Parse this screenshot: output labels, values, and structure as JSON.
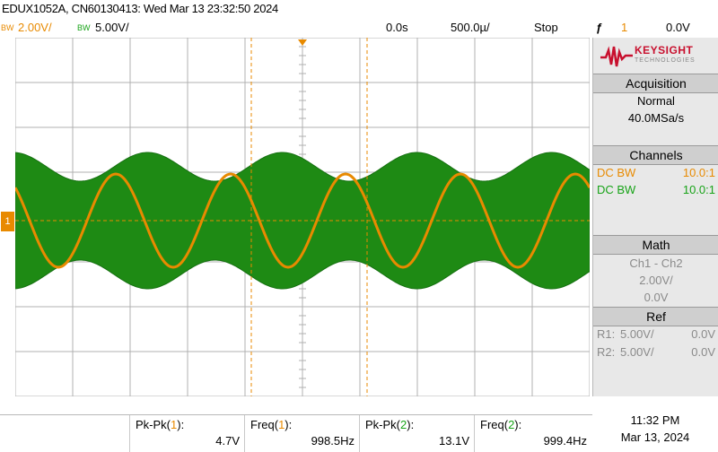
{
  "title": "EDUX1052A, CN60130413: Wed Mar 13 23:32:50 2024",
  "status": {
    "ch1_bw": "BW",
    "ch1_scale": "2.00V/",
    "ch2_bw": "BW",
    "ch2_scale": "5.00V/",
    "time_delay": "0.0s",
    "time_scale": "500.0µ/",
    "run_state": "Stop",
    "trigger_symbol": "ƒ",
    "trigger_channel": "1",
    "trigger_level": "0.0V"
  },
  "colors": {
    "ch1": "#e88a00",
    "ch2": "#17a317",
    "grid": "#b0b0b0"
  },
  "logo": {
    "name": "KEYSIGHT",
    "sub": "TECHNOLOGIES"
  },
  "acquisition": {
    "header": "Acquisition",
    "mode": "Normal",
    "rate": "40.0MSa/s"
  },
  "channels": {
    "header": "Channels",
    "rows": [
      {
        "coupling": "DC BW",
        "probe": "10.0:1"
      },
      {
        "coupling": "DC BW",
        "probe": "10.0:1"
      }
    ]
  },
  "math": {
    "header": "Math",
    "expr": "Ch1 - Ch2",
    "scale": "2.00V/",
    "offset": "0.0V"
  },
  "ref": {
    "header": "Ref",
    "rows": [
      {
        "label": "R1:",
        "scale": "5.00V/",
        "offset": "0.0V"
      },
      {
        "label": "R2:",
        "scale": "5.00V/",
        "offset": "0.0V"
      }
    ]
  },
  "ground_marker": "1",
  "measurements": [
    {
      "label": "Pk-Pk(",
      "ch": "1",
      "end": "):",
      "value": "4.7V"
    },
    {
      "label": "Freq(",
      "ch": "1",
      "end": "):",
      "value": "998.5Hz"
    },
    {
      "label": "Pk-Pk(",
      "ch": "2",
      "end": "):",
      "value": "13.1V"
    },
    {
      "label": "Freq(",
      "ch": "2",
      "end": "):",
      "value": "999.4Hz"
    }
  ],
  "clock": {
    "time": "11:32 PM",
    "date": "Mar 13, 2024"
  }
}
